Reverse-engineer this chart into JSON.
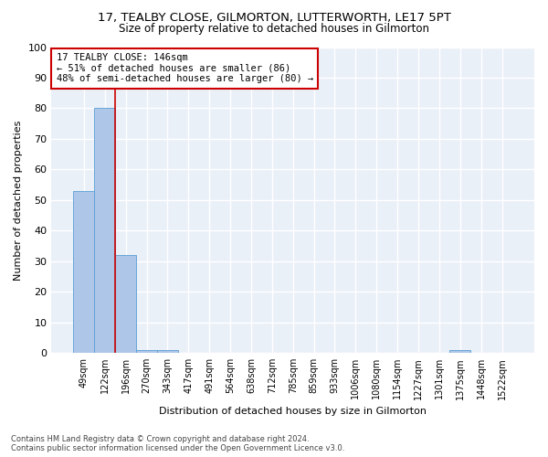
{
  "title1": "17, TEALBY CLOSE, GILMORTON, LUTTERWORTH, LE17 5PT",
  "title2": "Size of property relative to detached houses in Gilmorton",
  "xlabel": "Distribution of detached houses by size in Gilmorton",
  "ylabel": "Number of detached properties",
  "annotation_title": "17 TEALBY CLOSE: 146sqm",
  "annotation_line1": "← 51% of detached houses are smaller (86)",
  "annotation_line2": "48% of semi-detached houses are larger (80) →",
  "categories": [
    "49sqm",
    "122sqm",
    "196sqm",
    "270sqm",
    "343sqm",
    "417sqm",
    "491sqm",
    "564sqm",
    "638sqm",
    "712sqm",
    "785sqm",
    "859sqm",
    "933sqm",
    "1006sqm",
    "1080sqm",
    "1154sqm",
    "1227sqm",
    "1301sqm",
    "1375sqm",
    "1448sqm",
    "1522sqm"
  ],
  "bar_values": [
    53,
    80,
    32,
    1,
    1,
    0,
    0,
    0,
    0,
    0,
    0,
    0,
    0,
    0,
    0,
    0,
    0,
    0,
    1,
    0,
    0
  ],
  "bar_color": "#aec6e8",
  "bar_edge_color": "#5a9fd4",
  "reference_line_x": 1.5,
  "reference_line_color": "#cc0000",
  "ylim": [
    0,
    100
  ],
  "yticks": [
    0,
    10,
    20,
    30,
    40,
    50,
    60,
    70,
    80,
    90,
    100
  ],
  "background_color": "#eaf0f8",
  "grid_color": "#ffffff",
  "footer_line1": "Contains HM Land Registry data © Crown copyright and database right 2024.",
  "footer_line2": "Contains public sector information licensed under the Open Government Licence v3.0.",
  "title_fontsize": 9.5,
  "subtitle_fontsize": 8.5,
  "annotation_border_color": "#cc0000",
  "annotation_fontsize": 7.5
}
